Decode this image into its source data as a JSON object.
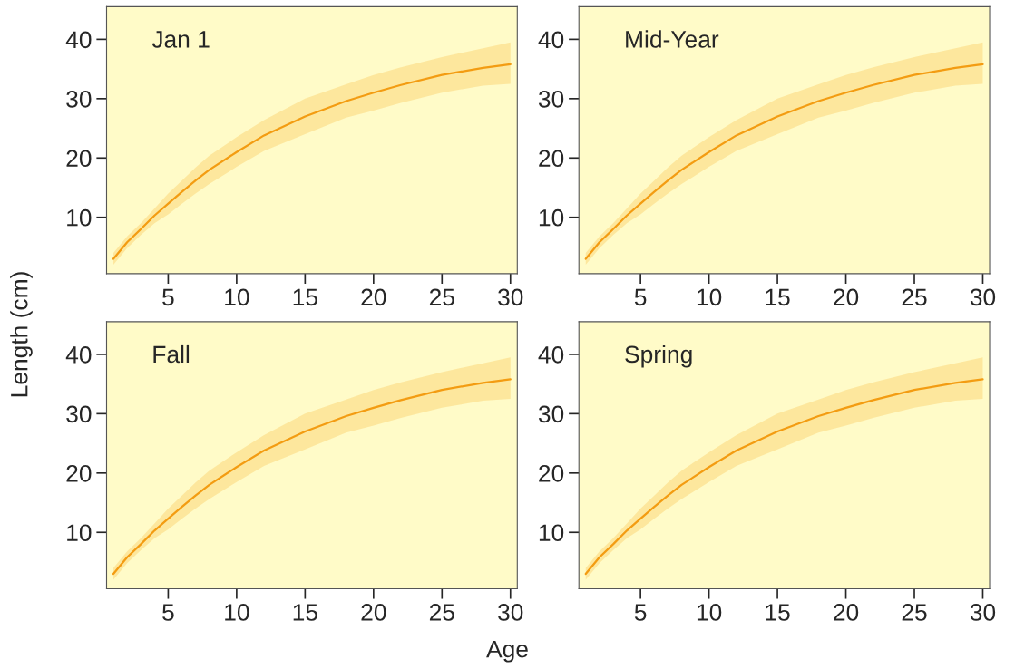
{
  "chart_data": [
    {
      "type": "line",
      "title": "Jan 1",
      "xlabel": "Age",
      "ylabel": "Length (cm)",
      "xlim": [
        0.5,
        30.5
      ],
      "ylim": [
        0.5,
        45.5
      ],
      "xticks": [
        5,
        10,
        15,
        20,
        25,
        30
      ],
      "yticks": [
        10,
        20,
        30,
        40
      ],
      "grid": false,
      "legend": false,
      "marker": "none",
      "line_style": "solid",
      "x": [
        1,
        2,
        3,
        4,
        5,
        6,
        7,
        8,
        10,
        12,
        15,
        18,
        20,
        22,
        25,
        28,
        30
      ],
      "series": [
        {
          "color": "#f39c12",
          "values": [
            3,
            5.8,
            8,
            10.3,
            12.3,
            14.3,
            16.2,
            18,
            21,
            23.8,
            27,
            29.6,
            31,
            32.3,
            34,
            35.2,
            35.8
          ],
          "lower": [
            2,
            4.8,
            7,
            9,
            10.5,
            12.3,
            14,
            15.6,
            18.5,
            21.2,
            24,
            26.8,
            28,
            29.3,
            31,
            32.2,
            32.5
          ],
          "upper": [
            4,
            6.8,
            9,
            11.5,
            14,
            16.2,
            18.4,
            20.4,
            23.5,
            26.4,
            30,
            32.4,
            34,
            35.3,
            37,
            38.5,
            39.5
          ]
        }
      ]
    },
    {
      "type": "line",
      "title": "Mid-Year",
      "xlim": [
        0.5,
        30.5
      ],
      "ylim": [
        0.5,
        45.5
      ],
      "xticks": [
        5,
        10,
        15,
        20,
        25,
        30
      ],
      "yticks": [
        10,
        20,
        30,
        40
      ],
      "grid": false,
      "legend": false,
      "marker": "none",
      "line_style": "solid",
      "x": [
        1,
        2,
        3,
        4,
        5,
        6,
        7,
        8,
        10,
        12,
        15,
        18,
        20,
        22,
        25,
        28,
        30
      ],
      "series": [
        {
          "color": "#f39c12",
          "values": [
            3,
            5.8,
            8,
            10.3,
            12.3,
            14.3,
            16.2,
            18,
            21,
            23.8,
            27,
            29.6,
            31,
            32.3,
            34,
            35.2,
            35.8
          ],
          "lower": [
            2,
            4.8,
            7,
            9,
            10.5,
            12.3,
            14,
            15.6,
            18.5,
            21.2,
            24,
            26.8,
            28,
            29.3,
            31,
            32.2,
            32.5
          ],
          "upper": [
            4,
            6.8,
            9,
            11.5,
            14,
            16.2,
            18.4,
            20.4,
            23.5,
            26.4,
            30,
            32.4,
            34,
            35.3,
            37,
            38.5,
            39.5
          ]
        }
      ]
    },
    {
      "type": "line",
      "title": "Fall",
      "xlim": [
        0.5,
        30.5
      ],
      "ylim": [
        0.5,
        45.5
      ],
      "xticks": [
        5,
        10,
        15,
        20,
        25,
        30
      ],
      "yticks": [
        10,
        20,
        30,
        40
      ],
      "grid": false,
      "legend": false,
      "marker": "none",
      "line_style": "solid",
      "x": [
        1,
        2,
        3,
        4,
        5,
        6,
        7,
        8,
        10,
        12,
        15,
        18,
        20,
        22,
        25,
        28,
        30
      ],
      "series": [
        {
          "color": "#f39c12",
          "values": [
            3,
            5.8,
            8,
            10.3,
            12.3,
            14.3,
            16.2,
            18,
            21,
            23.8,
            27,
            29.6,
            31,
            32.3,
            34,
            35.2,
            35.8
          ],
          "lower": [
            2,
            4.8,
            7,
            9,
            10.5,
            12.3,
            14,
            15.6,
            18.5,
            21.2,
            24,
            26.8,
            28,
            29.3,
            31,
            32.2,
            32.5
          ],
          "upper": [
            4,
            6.8,
            9,
            11.5,
            14,
            16.2,
            18.4,
            20.4,
            23.5,
            26.4,
            30,
            32.4,
            34,
            35.3,
            37,
            38.5,
            39.5
          ]
        }
      ]
    },
    {
      "type": "line",
      "title": "Spring",
      "xlim": [
        0.5,
        30.5
      ],
      "ylim": [
        0.5,
        45.5
      ],
      "xticks": [
        5,
        10,
        15,
        20,
        25,
        30
      ],
      "yticks": [
        10,
        20,
        30,
        40
      ],
      "grid": false,
      "legend": false,
      "marker": "none",
      "line_style": "solid",
      "x": [
        1,
        2,
        3,
        4,
        5,
        6,
        7,
        8,
        10,
        12,
        15,
        18,
        20,
        22,
        25,
        28,
        30
      ],
      "series": [
        {
          "color": "#f39c12",
          "values": [
            3,
            5.8,
            8,
            10.3,
            12.3,
            14.3,
            16.2,
            18,
            21,
            23.8,
            27,
            29.6,
            31,
            32.3,
            34,
            35.2,
            35.8
          ],
          "lower": [
            2,
            4.8,
            7,
            9,
            10.5,
            12.3,
            14,
            15.6,
            18.5,
            21.2,
            24,
            26.8,
            28,
            29.3,
            31,
            32.2,
            32.5
          ],
          "upper": [
            4,
            6.8,
            9,
            11.5,
            14,
            16.2,
            18.4,
            20.4,
            23.5,
            26.4,
            30,
            32.4,
            34,
            35.3,
            37,
            38.5,
            39.5
          ]
        }
      ]
    }
  ]
}
